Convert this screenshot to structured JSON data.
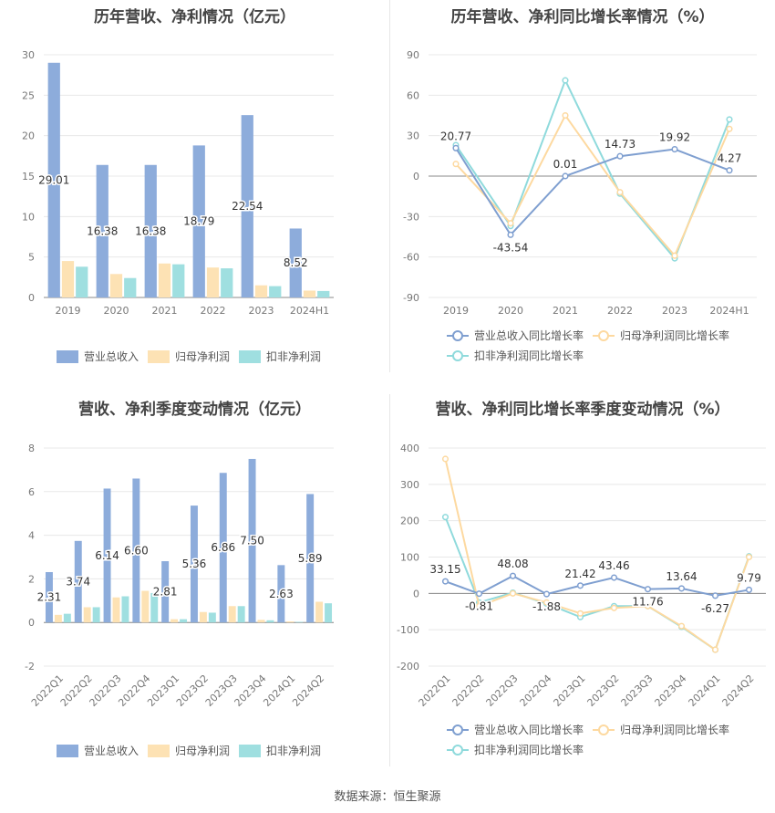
{
  "panels": [
    {
      "title": "历年营收、净利情况（亿元）",
      "legend": [
        {
          "name": "营业总收入",
          "color": "#8dacdb"
        },
        {
          "name": "归母净利润",
          "color": "#fde2b4"
        },
        {
          "name": "扣非净利润",
          "color": "#9fdfe0"
        }
      ]
    },
    {
      "title": "历年营收、净利同比增长率情况（%）",
      "legend": [
        {
          "name": "营业总收入同比增长率",
          "color": "#7f9fd0"
        },
        {
          "name": "归母净利润同比增长率",
          "color": "#fdd9a0"
        },
        {
          "name": "扣非净利润同比增长率",
          "color": "#8fdadc"
        }
      ]
    },
    {
      "title": "营收、净利季度变动情况（亿元）",
      "legend": [
        {
          "name": "营业总收入",
          "color": "#8dacdb"
        },
        {
          "name": "归母净利润",
          "color": "#fde2b4"
        },
        {
          "name": "扣非净利润",
          "color": "#9fdfe0"
        }
      ]
    },
    {
      "title": "营收、净利同比增长率季度变动情况（%）",
      "legend": [
        {
          "name": "营业总收入同比增长率",
          "color": "#7f9fd0"
        },
        {
          "name": "归母净利润同比增长率",
          "color": "#fdd9a0"
        },
        {
          "name": "扣非净利润同比增长率",
          "color": "#8fdadc"
        }
      ]
    }
  ],
  "footer": "数据来源：恒生聚源",
  "chart_data": [
    {
      "type": "bar",
      "title": "历年营收、净利情况（亿元）",
      "categories": [
        "2019",
        "2020",
        "2021",
        "2022",
        "2023",
        "2024H1"
      ],
      "ylim": [
        0,
        30
      ],
      "yticks": [
        0,
        5,
        10,
        15,
        20,
        25,
        30
      ],
      "grid": true,
      "legend_position": "bottom",
      "series": [
        {
          "name": "营业总收入",
          "color": "#8dacdb",
          "values": [
            29.01,
            16.38,
            16.38,
            18.79,
            22.54,
            8.52
          ],
          "labels": [
            "29.01",
            "16.38",
            "16.38",
            "18.79",
            "22.54",
            "8.52"
          ]
        },
        {
          "name": "归母净利润",
          "color": "#fde2b4",
          "values": [
            4.5,
            2.9,
            4.2,
            3.7,
            1.5,
            0.85
          ]
        },
        {
          "name": "扣非净利润",
          "color": "#9fdfe0",
          "values": [
            3.8,
            2.4,
            4.1,
            3.6,
            1.4,
            0.8
          ]
        }
      ]
    },
    {
      "type": "line",
      "title": "历年营收、净利同比增长率情况（%）",
      "categories": [
        "2019",
        "2020",
        "2021",
        "2022",
        "2023",
        "2024H1"
      ],
      "ylim": [
        -90,
        90
      ],
      "yticks": [
        -90,
        -60,
        -30,
        0,
        30,
        60,
        90
      ],
      "grid": true,
      "legend_position": "bottom",
      "series": [
        {
          "name": "营业总收入同比增长率",
          "color": "#7f9fd0",
          "values": [
            20.77,
            -43.54,
            0.01,
            14.73,
            19.92,
            4.27
          ],
          "labels": [
            "20.77",
            "-43.54",
            "0.01",
            "14.73",
            "19.92",
            "4.27"
          ]
        },
        {
          "name": "归母净利润同比增长率",
          "color": "#fdd9a0",
          "values": [
            9,
            -35,
            45,
            -12,
            -59,
            35
          ]
        },
        {
          "name": "扣非净利润同比增长率",
          "color": "#8fdadc",
          "values": [
            23,
            -37,
            71,
            -13,
            -61,
            42
          ]
        }
      ]
    },
    {
      "type": "bar",
      "title": "营收、净利季度变动情况（亿元）",
      "categories": [
        "2022Q1",
        "2022Q2",
        "2022Q3",
        "2022Q4",
        "2023Q1",
        "2023Q2",
        "2023Q3",
        "2023Q4",
        "2024Q1",
        "2024Q2"
      ],
      "ylim": [
        -2,
        8
      ],
      "yticks": [
        -2,
        0,
        2,
        4,
        6,
        8
      ],
      "grid": true,
      "legend_position": "bottom",
      "series": [
        {
          "name": "营业总收入",
          "color": "#8dacdb",
          "values": [
            2.31,
            3.74,
            6.14,
            6.6,
            2.81,
            5.36,
            6.86,
            7.5,
            2.63,
            5.89
          ],
          "labels": [
            "2.31",
            "3.74",
            "6.14",
            "6.60",
            "2.81",
            "5.36",
            "6.86",
            "7.50",
            "2.63",
            "5.89"
          ]
        },
        {
          "name": "归母净利润",
          "color": "#fde2b4",
          "values": [
            0.35,
            0.7,
            1.15,
            1.45,
            0.15,
            0.48,
            0.75,
            0.12,
            0.05,
            0.95
          ]
        },
        {
          "name": "扣非净利润",
          "color": "#9fdfe0",
          "values": [
            0.4,
            0.7,
            1.2,
            1.35,
            0.15,
            0.45,
            0.75,
            0.1,
            0.03,
            0.88
          ]
        }
      ]
    },
    {
      "type": "line",
      "title": "营收、净利同比增长率季度变动情况（%）",
      "categories": [
        "2022Q1",
        "2022Q2",
        "2022Q3",
        "2022Q4",
        "2023Q1",
        "2023Q2",
        "2023Q3",
        "2023Q4",
        "2024Q1",
        "2024Q2"
      ],
      "ylim": [
        -200,
        400
      ],
      "yticks": [
        -200,
        -100,
        0,
        100,
        200,
        300,
        400
      ],
      "grid": true,
      "legend_position": "bottom",
      "series": [
        {
          "name": "营业总收入同比增长率",
          "color": "#7f9fd0",
          "values": [
            33.15,
            -0.81,
            48.08,
            -1.88,
            21.42,
            43.46,
            11.76,
            13.64,
            -6.27,
            9.79
          ],
          "labels": [
            "33.15",
            "-0.81",
            "48.08",
            "-1.88",
            "21.42",
            "43.46",
            "11.76",
            "13.64",
            "-6.27",
            "9.79"
          ]
        },
        {
          "name": "归母净利润同比增长率",
          "color": "#fdd9a0",
          "values": [
            370,
            -35,
            0,
            -25,
            -55,
            -40,
            -35,
            -90,
            -155,
            100
          ]
        },
        {
          "name": "扣非净利润同比增长率",
          "color": "#8fdadc",
          "values": [
            210,
            -25,
            2,
            -28,
            -65,
            -35,
            -35,
            -92,
            -155,
            102
          ]
        }
      ]
    }
  ]
}
